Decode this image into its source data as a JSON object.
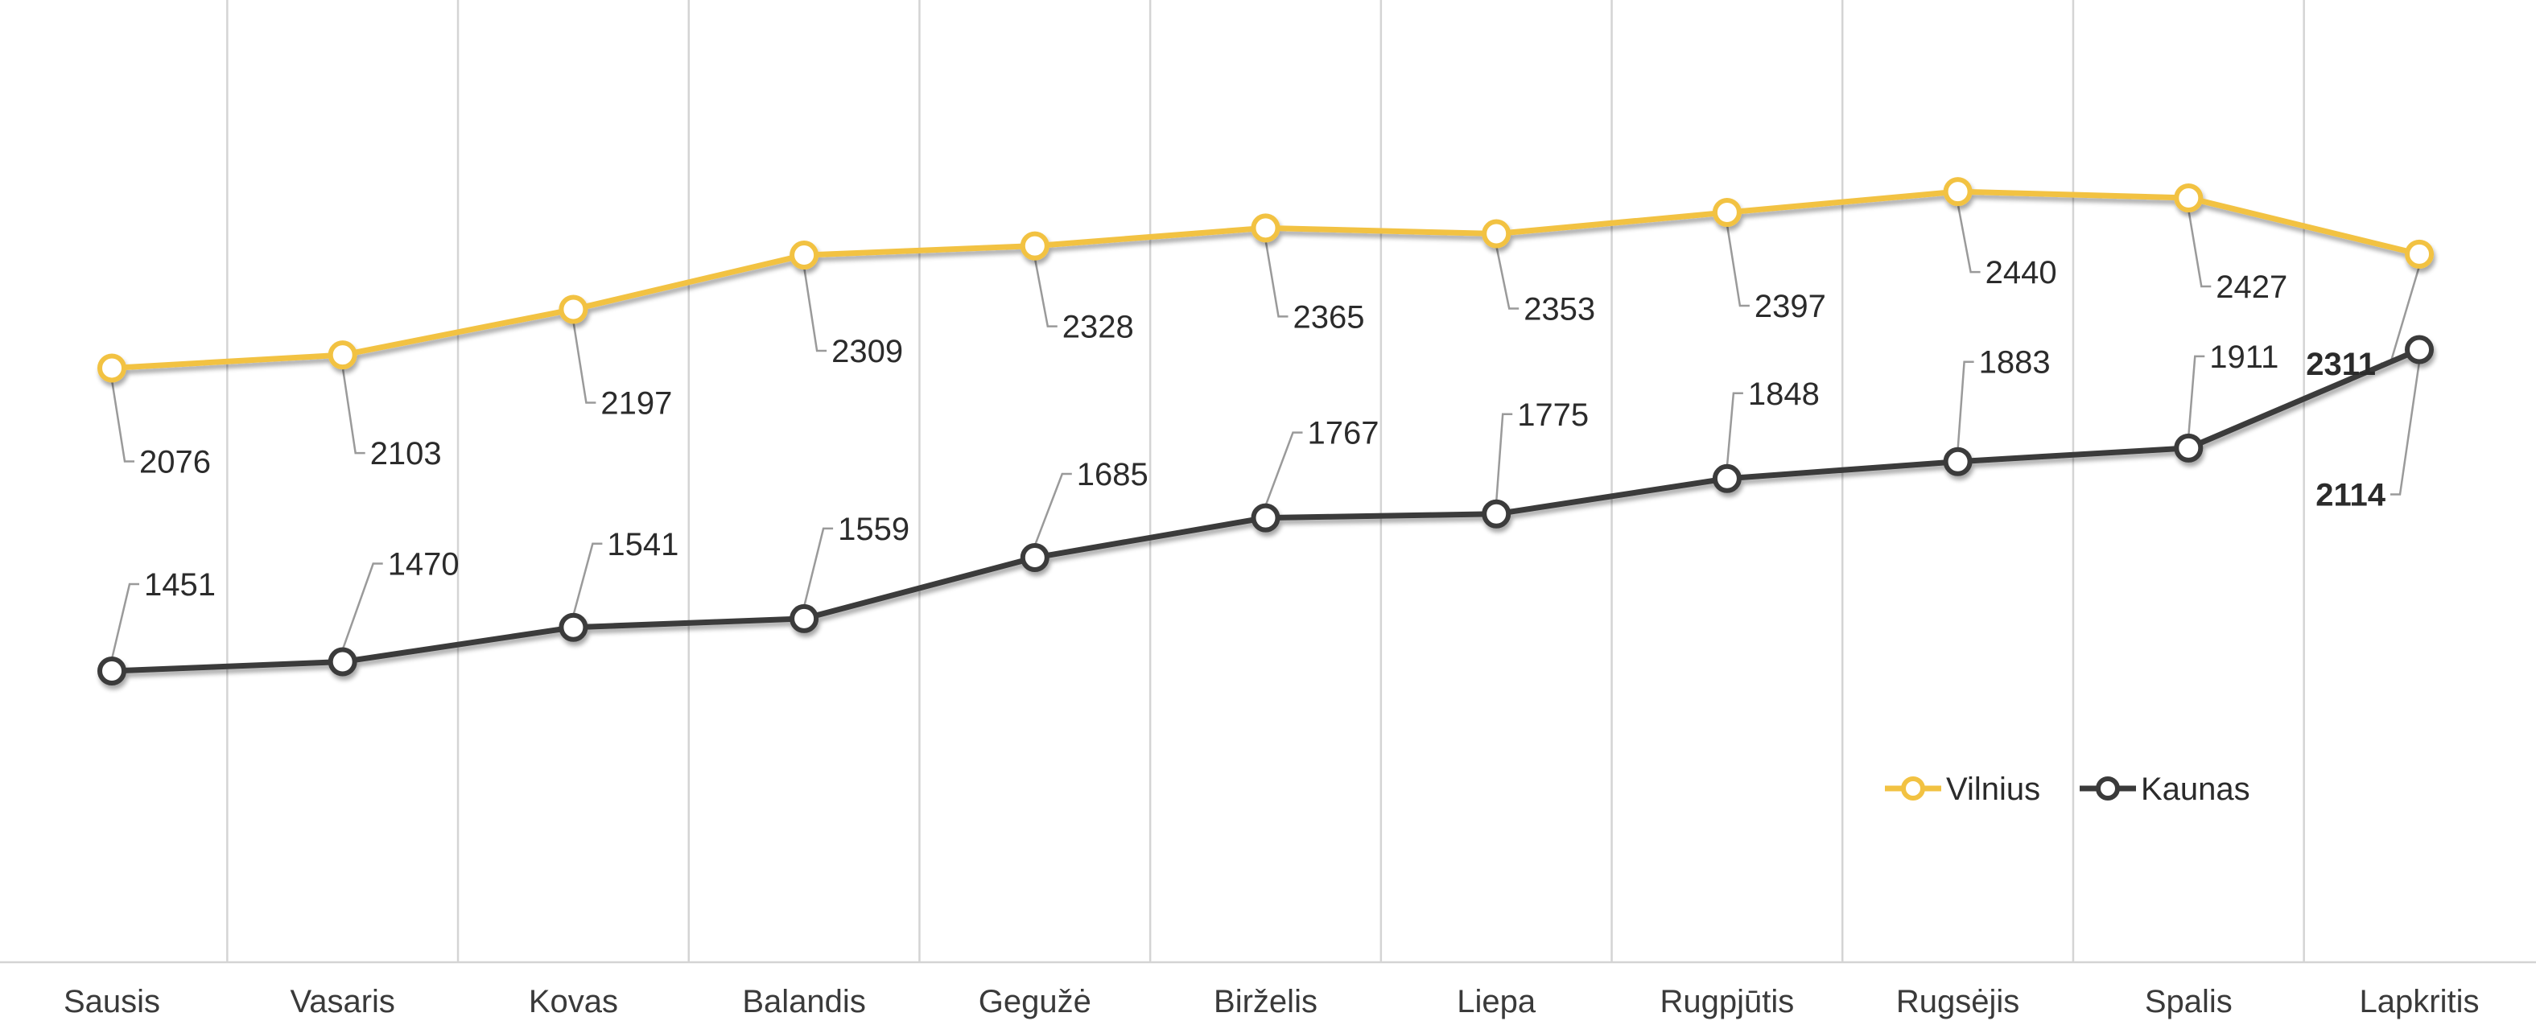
{
  "chart_data": {
    "type": "line",
    "title": "",
    "xlabel": "",
    "ylabel": "",
    "categories": [
      "Sausis",
      "Vasaris",
      "Kovas",
      "Balandis",
      "Gegužė",
      "Birželis",
      "Liepa",
      "Rugpjūtis",
      "Rugsėjis",
      "Spalis",
      "Lapkritis"
    ],
    "series": [
      {
        "name": "Vilnius",
        "color": "#F2C242",
        "values": [
          2076,
          2103,
          2197,
          2309,
          2328,
          2365,
          2353,
          2397,
          2440,
          2427,
          2311
        ]
      },
      {
        "name": "Kaunas",
        "color": "#3A3A3A",
        "values": [
          1451,
          1470,
          1541,
          1559,
          1685,
          1767,
          1775,
          1848,
          1883,
          1911,
          2114
        ]
      }
    ],
    "grid": {
      "vertical": true,
      "horizontal": false
    },
    "y_axis_visible": false,
    "legend": {
      "position": "right",
      "entries": [
        "Vilnius",
        "Kaunas"
      ]
    }
  }
}
